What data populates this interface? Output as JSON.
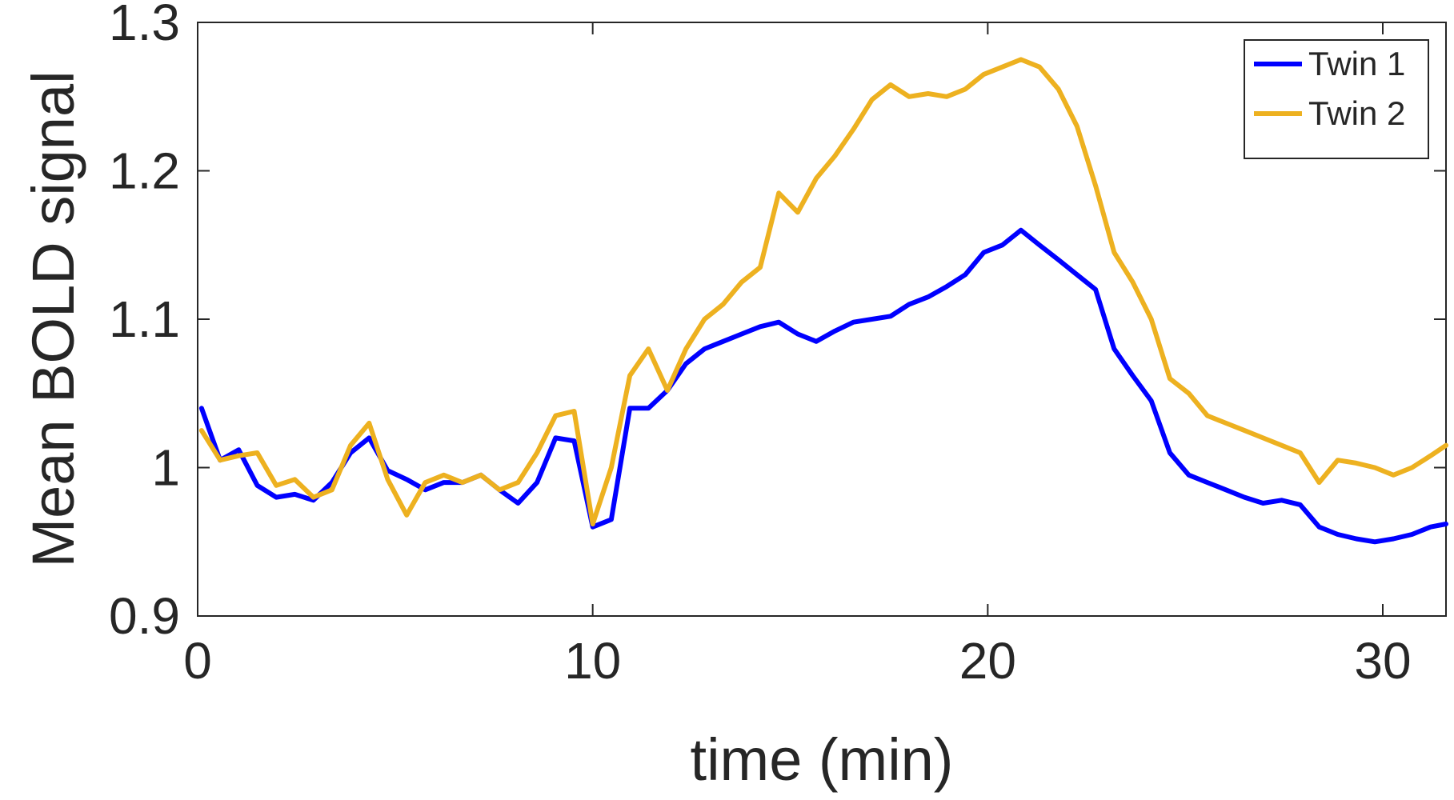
{
  "chart_data": {
    "type": "line",
    "title": "",
    "xlabel": "time (min)",
    "ylabel": "Mean BOLD signal",
    "xlim": [
      0,
      31.6
    ],
    "ylim": [
      0.9,
      1.3
    ],
    "xticks": [
      0,
      10,
      20,
      30
    ],
    "xtick_labels": [
      "0",
      "10",
      "20",
      "30"
    ],
    "yticks": [
      0.9,
      1.0,
      1.1,
      1.2,
      1.3
    ],
    "ytick_labels": [
      "0.9",
      "1",
      "1.1",
      "1.2",
      "1.3"
    ],
    "grid": false,
    "legend_position": "top-right",
    "series": [
      {
        "name": "Twin 1",
        "color": "#0000ff",
        "x": [
          0.1,
          0.57,
          1.04,
          1.51,
          1.99,
          2.46,
          2.93,
          3.4,
          3.87,
          4.34,
          4.81,
          5.29,
          5.76,
          6.23,
          6.7,
          7.17,
          7.64,
          8.11,
          8.59,
          9.06,
          9.53,
          10.0,
          10.47,
          10.94,
          11.41,
          11.89,
          12.36,
          12.83,
          13.3,
          13.77,
          14.24,
          14.71,
          15.19,
          15.66,
          16.13,
          16.6,
          17.07,
          17.54,
          18.01,
          18.49,
          18.96,
          19.43,
          19.9,
          20.37,
          20.84,
          21.31,
          21.79,
          22.26,
          22.73,
          23.2,
          23.67,
          24.14,
          24.61,
          25.09,
          25.56,
          26.03,
          26.5,
          26.97,
          27.44,
          27.91,
          28.39,
          28.86,
          29.33,
          29.8,
          30.27,
          30.74,
          31.21,
          31.6
        ],
        "y": [
          1.04,
          1.005,
          1.012,
          0.988,
          0.98,
          0.982,
          0.978,
          0.99,
          1.01,
          1.02,
          0.998,
          0.992,
          0.985,
          0.99,
          0.99,
          0.995,
          0.985,
          0.976,
          0.99,
          1.02,
          1.018,
          0.96,
          0.965,
          1.04,
          1.04,
          1.052,
          1.07,
          1.08,
          1.085,
          1.09,
          1.095,
          1.098,
          1.09,
          1.085,
          1.092,
          1.098,
          1.1,
          1.102,
          1.11,
          1.115,
          1.122,
          1.13,
          1.145,
          1.15,
          1.16,
          1.15,
          1.14,
          1.13,
          1.12,
          1.08,
          1.062,
          1.045,
          1.01,
          0.995,
          0.99,
          0.985,
          0.98,
          0.976,
          0.978,
          0.975,
          0.96,
          0.955,
          0.952,
          0.95,
          0.952,
          0.955,
          0.96,
          0.962
        ]
      },
      {
        "name": "Twin 2",
        "color": "#edb120",
        "x": [
          0.1,
          0.57,
          1.04,
          1.51,
          1.99,
          2.46,
          2.93,
          3.4,
          3.87,
          4.34,
          4.81,
          5.29,
          5.76,
          6.23,
          6.7,
          7.17,
          7.64,
          8.11,
          8.59,
          9.06,
          9.53,
          10.0,
          10.47,
          10.94,
          11.41,
          11.89,
          12.36,
          12.83,
          13.3,
          13.77,
          14.24,
          14.71,
          15.19,
          15.66,
          16.13,
          16.6,
          17.07,
          17.54,
          18.01,
          18.49,
          18.96,
          19.43,
          19.9,
          20.37,
          20.84,
          21.31,
          21.79,
          22.26,
          22.73,
          23.2,
          23.67,
          24.14,
          24.61,
          25.09,
          25.56,
          26.03,
          26.5,
          26.97,
          27.44,
          27.91,
          28.39,
          28.86,
          29.33,
          29.8,
          30.27,
          30.74,
          31.21,
          31.6
        ],
        "y": [
          1.025,
          1.005,
          1.008,
          1.01,
          0.988,
          0.992,
          0.98,
          0.985,
          1.015,
          1.03,
          0.992,
          0.968,
          0.99,
          0.995,
          0.99,
          0.995,
          0.985,
          0.99,
          1.01,
          1.035,
          1.038,
          0.962,
          1.0,
          1.062,
          1.08,
          1.052,
          1.08,
          1.1,
          1.11,
          1.125,
          1.135,
          1.185,
          1.172,
          1.195,
          1.21,
          1.228,
          1.248,
          1.258,
          1.25,
          1.252,
          1.25,
          1.255,
          1.265,
          1.27,
          1.275,
          1.27,
          1.255,
          1.23,
          1.19,
          1.145,
          1.125,
          1.1,
          1.06,
          1.05,
          1.035,
          1.03,
          1.025,
          1.02,
          1.015,
          1.01,
          0.99,
          1.005,
          1.003,
          1.0,
          0.995,
          1.0,
          1.008,
          1.015
        ]
      }
    ]
  }
}
